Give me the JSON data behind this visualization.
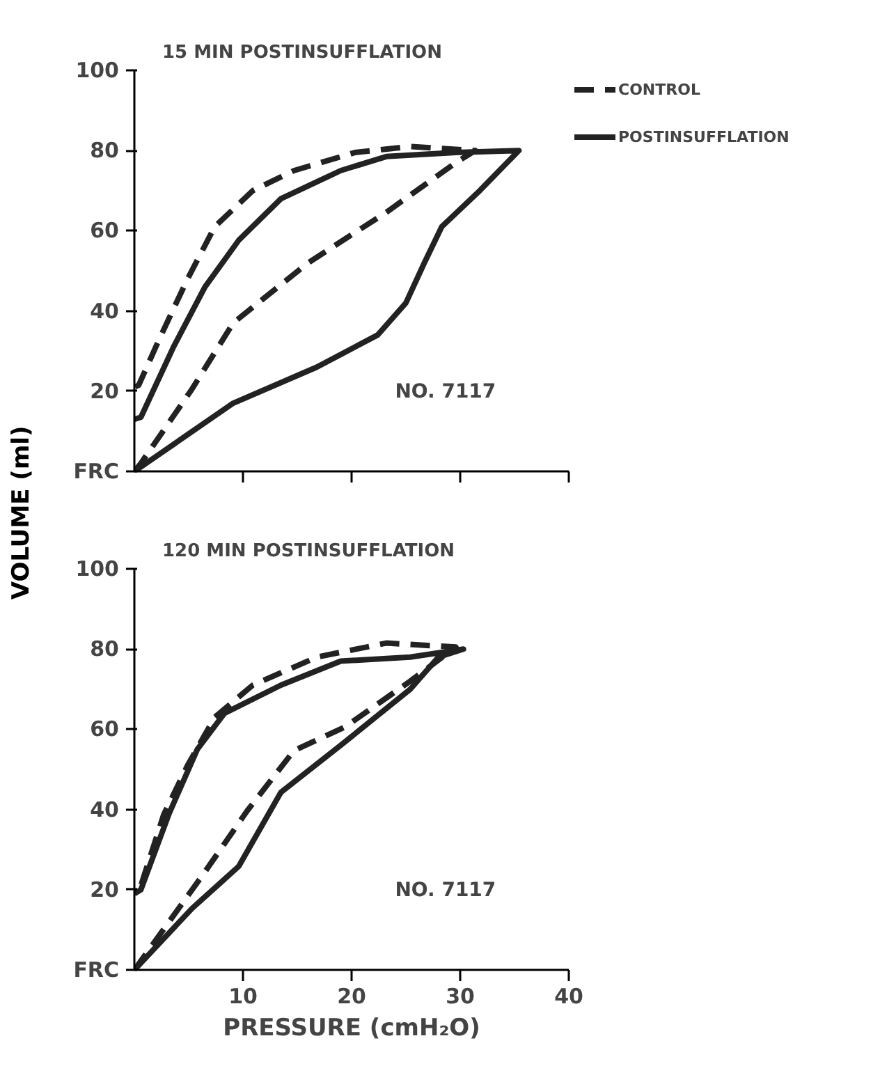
{
  "chart_data": [
    {
      "type": "line",
      "title": "15 MIN POSTINSUFFLATION",
      "ylabel": "VOLUME (ml)",
      "xlim": [
        0,
        40
      ],
      "ylim": [
        0,
        100
      ],
      "xticks": [
        10,
        20,
        30,
        40
      ],
      "yticks": [
        {
          "value": 0,
          "label": "FRC"
        },
        20,
        40,
        60,
        80,
        100
      ],
      "tick_labels": "y",
      "grid": false,
      "legend": "top right",
      "marker": "none",
      "annotations": [
        "NO. 7117"
      ],
      "series": [
        {
          "name": "CONTROL",
          "color": "#222222",
          "line_style": "dashed",
          "x": [
            0,
            0.6,
            5.3,
            9.1,
            16,
            23.2,
            29.6,
            31.4,
            25.4,
            20.3,
            14.7,
            10.9,
            7.4,
            4.9,
            2.3,
            0.4,
            0
          ],
          "values": [
            0,
            2,
            20.5,
            37,
            52,
            64.6,
            77,
            80,
            81,
            79.5,
            75,
            70,
            61,
            48,
            33,
            21.5,
            21
          ]
        },
        {
          "name": "POSTINSUFFLATION",
          "color": "#222222",
          "line_style": "solid",
          "x": [
            0,
            9.1,
            16.8,
            22.4,
            25,
            26.7,
            28.3,
            31.8,
            35.4,
            29.6,
            23.2,
            19,
            13.5,
            9.6,
            6.5,
            3.6,
            0.6,
            0
          ],
          "values": [
            0,
            17,
            26,
            34,
            42,
            52,
            61,
            70,
            80,
            79.5,
            78.5,
            75,
            68,
            57.6,
            46,
            31,
            13.5,
            13
          ]
        }
      ]
    },
    {
      "type": "line",
      "title": "120 MIN POSTINSUFFLATION",
      "xlabel": "PRESSURE (cmH₂O)",
      "xlim": [
        0,
        40
      ],
      "ylim": [
        0,
        100
      ],
      "xticks": [
        10,
        20,
        30,
        40
      ],
      "yticks": [
        {
          "value": 0,
          "label": "FRC"
        },
        20,
        40,
        60,
        80,
        100
      ],
      "grid": false,
      "marker": "none",
      "annotations": [
        "NO. 7117"
      ],
      "series": [
        {
          "color": "#222222",
          "line_style": "dashed",
          "x": [
            0,
            6.2,
            10.4,
            14.7,
            19.4,
            25.4,
            29.6,
            23.2,
            16.8,
            10.9,
            7.4,
            4.9,
            2.7,
            0.6,
            0
          ],
          "values": [
            0,
            23.3,
            39.7,
            54.7,
            60.6,
            72,
            80.5,
            81.5,
            78,
            71,
            63,
            51,
            38.7,
            21,
            20
          ]
        },
        {
          "color": "#222222",
          "line_style": "solid",
          "x": [
            0,
            5.3,
            9.6,
            13.5,
            19,
            25.4,
            28,
            30.3,
            25.4,
            19,
            13.5,
            8.3,
            5.8,
            3.2,
            0.6,
            0
          ],
          "values": [
            0,
            15.3,
            25.8,
            44.3,
            56,
            70,
            78,
            80,
            78,
            77,
            71,
            64,
            55,
            39,
            20,
            19
          ]
        }
      ]
    }
  ]
}
